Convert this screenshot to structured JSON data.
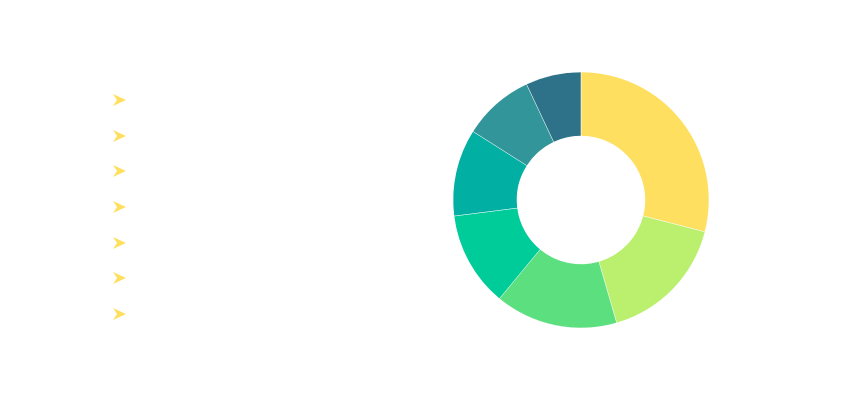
{
  "chart_data": {
    "type": "pie",
    "variant": "donut",
    "categories": [
      "",
      "",
      "",
      "",
      "",
      "",
      ""
    ],
    "values": [
      29.0,
      16.5,
      15.5,
      12.0,
      11.0,
      9.0,
      7.0
    ],
    "colors": [
      "#FFDF5F",
      "#BAF06D",
      "#5CE07F",
      "#00CC99",
      "#02AFA3",
      "#31959A",
      "#2E7289"
    ],
    "start_angle": "top",
    "direction": "clockwise",
    "legend": {
      "position": "left",
      "icon": "arrow-icon",
      "icon_color": "#FFDF5F"
    }
  }
}
